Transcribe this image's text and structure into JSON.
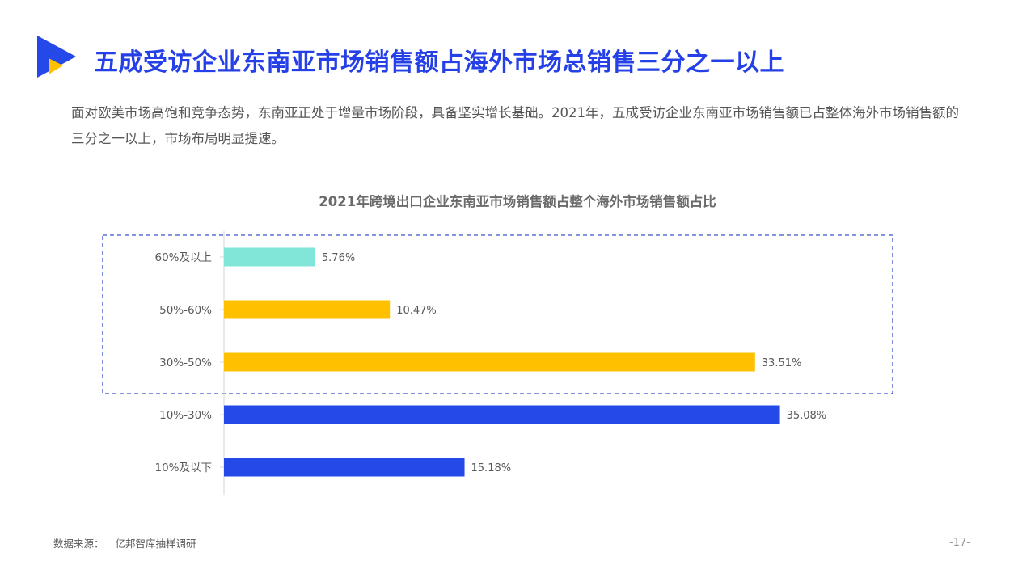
{
  "header": {
    "logo_icon": "play-triangle-logo-icon",
    "title": "五成受访企业东南亚市场销售额占海外市场总销售三分之一以上"
  },
  "intro": "面对欧美市场高饱和竞争态势，东南亚正处于增量市场阶段，具备坚实增长基础。2021年，五成受访企业东南亚市场销售额已占整体海外市场销售额的三分之一以上，市场布局明显提速。",
  "chart_data": {
    "type": "bar",
    "orientation": "horizontal",
    "title": "2021年跨境出口企业东南亚市场销售额占整个海外市场销售额占比",
    "xlabel": "",
    "ylabel": "",
    "categories": [
      "60%及以上",
      "50%-60%",
      "30%-50%",
      "10%-30%",
      "10%及以下"
    ],
    "values": [
      5.76,
      10.47,
      33.51,
      35.08,
      15.18
    ],
    "value_labels": [
      "5.76%",
      "10.47%",
      "33.51%",
      "35.08%",
      "15.18%"
    ],
    "xlim": [
      0,
      36
    ],
    "grid": false,
    "legend": "none",
    "highlight": "dashed box around 60%及以上, 50%-60%, 30%-50%",
    "colors": [
      "#7FE6D8",
      "#FFC000",
      "#FFC000",
      "#2548E8",
      "#2548E8"
    ]
  },
  "footer": {
    "source_label": "数据来源：",
    "source_value": "亿邦智库抽样调研",
    "page_number": "-17-"
  },
  "colors": {
    "title_blue": "#2540E6",
    "logo_blue": "#2548E8",
    "logo_yellow": "#FFC000",
    "highlight_border": "#3F51C8"
  }
}
